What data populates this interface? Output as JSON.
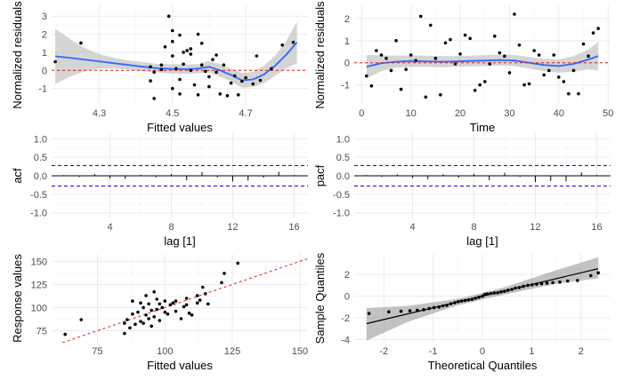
{
  "chart_data": [
    {
      "id": "p1",
      "type": "scatter",
      "xlabel": "Fitted values",
      "ylabel": "Normalized residuals",
      "xlim": [
        4.17,
        4.87
      ],
      "ylim": [
        -1.9,
        3.6
      ],
      "xticks": [
        4.3,
        4.5,
        4.7
      ],
      "yticks": [
        -1,
        0,
        1,
        2,
        3
      ],
      "refline_y": 0,
      "points": [
        [
          4.18,
          0.48
        ],
        [
          4.25,
          1.52
        ],
        [
          4.44,
          -0.58
        ],
        [
          4.44,
          0.2
        ],
        [
          4.45,
          -0.1
        ],
        [
          4.45,
          -1.55
        ],
        [
          4.47,
          0.3
        ],
        [
          4.47,
          0.05
        ],
        [
          4.48,
          1.3
        ],
        [
          4.49,
          3.0
        ],
        [
          4.5,
          2.2
        ],
        [
          4.5,
          1.6
        ],
        [
          4.5,
          0.8
        ],
        [
          4.5,
          -1.0
        ],
        [
          4.51,
          0.1
        ],
        [
          4.52,
          1.95
        ],
        [
          4.52,
          -0.5
        ],
        [
          4.52,
          -1.3
        ],
        [
          4.53,
          1.0
        ],
        [
          4.53,
          0.35
        ],
        [
          4.54,
          1.1
        ],
        [
          4.55,
          1.2
        ],
        [
          4.55,
          0.9
        ],
        [
          4.55,
          0.0
        ],
        [
          4.56,
          -0.8
        ],
        [
          4.57,
          2.0
        ],
        [
          4.57,
          -1.35
        ],
        [
          4.58,
          1.5
        ],
        [
          4.58,
          0.3
        ],
        [
          4.59,
          -0.05
        ],
        [
          4.6,
          -0.9
        ],
        [
          4.6,
          -0.35
        ],
        [
          4.61,
          0.6
        ],
        [
          4.62,
          0.85
        ],
        [
          4.62,
          -0.1
        ],
        [
          4.63,
          -1.3
        ],
        [
          4.64,
          0.3
        ],
        [
          4.65,
          -1.4
        ],
        [
          4.66,
          -0.7
        ],
        [
          4.67,
          -0.3
        ],
        [
          4.68,
          -1.35
        ],
        [
          4.69,
          -0.6
        ],
        [
          4.7,
          -0.4
        ],
        [
          4.72,
          -0.75
        ],
        [
          4.73,
          0.8
        ],
        [
          4.74,
          -0.55
        ],
        [
          4.77,
          0.1
        ],
        [
          4.8,
          1.4
        ],
        [
          4.83,
          1.55
        ]
      ],
      "smooth": {
        "x": [
          4.18,
          4.22,
          4.26,
          4.3,
          4.34,
          4.38,
          4.42,
          4.46,
          4.5,
          4.54,
          4.57,
          4.6,
          4.63,
          4.66,
          4.69,
          4.72,
          4.75,
          4.78,
          4.81,
          4.84
        ],
        "y": [
          0.78,
          0.7,
          0.6,
          0.5,
          0.4,
          0.3,
          0.2,
          0.12,
          0.08,
          0.07,
          0.1,
          0.2,
          0.0,
          -0.25,
          -0.55,
          -0.5,
          -0.22,
          0.25,
          0.85,
          1.55
        ],
        "lo": [
          -0.75,
          -0.35,
          -0.05,
          0.1,
          0.1,
          0.05,
          -0.05,
          -0.12,
          -0.18,
          -0.2,
          -0.15,
          -0.12,
          -0.35,
          -0.6,
          -0.95,
          -0.92,
          -0.7,
          -0.3,
          0.1,
          0.4
        ],
        "hi": [
          2.3,
          1.75,
          1.25,
          0.9,
          0.7,
          0.55,
          0.45,
          0.36,
          0.34,
          0.34,
          0.35,
          0.52,
          0.35,
          0.1,
          -0.15,
          -0.08,
          0.26,
          0.8,
          1.6,
          2.7
        ]
      }
    },
    {
      "id": "p2",
      "type": "scatter",
      "xlabel": "Time",
      "ylabel": "Normalized residuals",
      "xlim": [
        -1.5,
        50.5
      ],
      "ylim": [
        -1.9,
        2.6
      ],
      "xticks": [
        0,
        10,
        20,
        30,
        40,
        50
      ],
      "yticks": [
        -1,
        0,
        1,
        2
      ],
      "refline_y": 0,
      "points": [
        [
          1,
          -0.6
        ],
        [
          2,
          -1.05
        ],
        [
          3,
          0.55
        ],
        [
          4,
          0.35
        ],
        [
          5,
          0.2
        ],
        [
          6,
          -0.35
        ],
        [
          7,
          1.0
        ],
        [
          8,
          -1.2
        ],
        [
          9,
          -0.3
        ],
        [
          10,
          0.35
        ],
        [
          11,
          0.1
        ],
        [
          12,
          2.1
        ],
        [
          13,
          -1.55
        ],
        [
          14,
          1.7
        ],
        [
          15,
          0.2
        ],
        [
          16,
          -1.45
        ],
        [
          17,
          0.9
        ],
        [
          18,
          1.05
        ],
        [
          19,
          -0.05
        ],
        [
          20,
          0.4
        ],
        [
          21,
          1.25
        ],
        [
          22,
          1.1
        ],
        [
          23,
          -1.25
        ],
        [
          24,
          -1.0
        ],
        [
          25,
          -0.85
        ],
        [
          26,
          -0.05
        ],
        [
          27,
          1.2
        ],
        [
          28,
          0.45
        ],
        [
          29,
          0.3
        ],
        [
          30,
          -0.45
        ],
        [
          31,
          2.2
        ],
        [
          32,
          0.8
        ],
        [
          33,
          -1.0
        ],
        [
          34,
          -0.95
        ],
        [
          35,
          0.55
        ],
        [
          36,
          0.35
        ],
        [
          37,
          -0.55
        ],
        [
          38,
          -0.35
        ],
        [
          39,
          0.35
        ],
        [
          40,
          -0.65
        ],
        [
          41,
          -0.85
        ],
        [
          42,
          -1.4
        ],
        [
          43,
          -0.35
        ],
        [
          44,
          -1.4
        ],
        [
          45,
          0.85
        ],
        [
          46,
          0.3
        ],
        [
          47,
          1.35
        ],
        [
          48,
          1.55
        ]
      ],
      "smooth": {
        "x": [
          1,
          4,
          7,
          10,
          13,
          16,
          19,
          22,
          25,
          28,
          31,
          34,
          37,
          40,
          43,
          46,
          48
        ],
        "y": [
          -0.18,
          -0.02,
          0.05,
          0.08,
          0.07,
          0.05,
          0.06,
          0.08,
          0.1,
          0.12,
          0.1,
          0.0,
          -0.1,
          -0.15,
          -0.05,
          0.15,
          0.3
        ],
        "lo": [
          -0.7,
          -0.38,
          -0.22,
          -0.18,
          -0.19,
          -0.2,
          -0.18,
          -0.16,
          -0.15,
          -0.13,
          -0.15,
          -0.26,
          -0.38,
          -0.45,
          -0.4,
          -0.3,
          -0.35
        ],
        "hi": [
          0.35,
          0.34,
          0.32,
          0.33,
          0.32,
          0.3,
          0.3,
          0.32,
          0.35,
          0.37,
          0.35,
          0.26,
          0.18,
          0.15,
          0.3,
          0.6,
          0.95
        ]
      }
    },
    {
      "id": "p3",
      "type": "bar",
      "xlabel": "lag [1]",
      "ylabel": "acf",
      "xlim": [
        0.2,
        16.9
      ],
      "ylim": [
        -1.15,
        1.15
      ],
      "xticks": [
        4,
        8,
        12,
        16
      ],
      "yticks": [
        -1.0,
        -0.5,
        0.0,
        0.5,
        1.0
      ],
      "conf": 0.28,
      "lags": [
        1,
        2,
        3,
        4,
        5,
        6,
        7,
        8,
        9,
        10,
        11,
        12,
        13,
        14,
        15,
        16
      ],
      "values": [
        0.02,
        -0.03,
        0.05,
        -0.07,
        -0.08,
        0.03,
        -0.04,
        0.05,
        -0.12,
        0.1,
        -0.04,
        -0.15,
        -0.13,
        -0.05,
        0.11,
        0.02
      ]
    },
    {
      "id": "p4",
      "type": "bar",
      "xlabel": "lag [1]",
      "ylabel": "pacf",
      "xlim": [
        0.2,
        16.9
      ],
      "ylim": [
        -1.15,
        1.15
      ],
      "xticks": [
        4,
        8,
        12,
        16
      ],
      "yticks": [
        -1.0,
        -0.5,
        0.0,
        0.5,
        1.0
      ],
      "conf": 0.28,
      "lags": [
        1,
        2,
        3,
        4,
        5,
        6,
        7,
        8,
        9,
        10,
        11,
        12,
        13,
        14,
        15,
        16
      ],
      "values": [
        0.02,
        -0.03,
        0.04,
        -0.06,
        -0.09,
        0.04,
        -0.05,
        0.05,
        -0.12,
        0.08,
        -0.03,
        -0.17,
        -0.14,
        -0.15,
        0.09,
        0.02
      ]
    },
    {
      "id": "p5",
      "type": "scatter",
      "xlabel": "Fitted values",
      "ylabel": "Response values",
      "xlim": [
        58,
        153
      ],
      "ylim": [
        62,
        158
      ],
      "xticks": [
        75,
        100,
        125,
        150
      ],
      "yticks": [
        75,
        100,
        125,
        150
      ],
      "identity_line": true,
      "points": [
        [
          63,
          71
        ],
        [
          69,
          87
        ],
        [
          85,
          72
        ],
        [
          85,
          83
        ],
        [
          86,
          87
        ],
        [
          87,
          78
        ],
        [
          88,
          93
        ],
        [
          88,
          107
        ],
        [
          89,
          82
        ],
        [
          90,
          95
        ],
        [
          91,
          85
        ],
        [
          91,
          105
        ],
        [
          92,
          83
        ],
        [
          92,
          100
        ],
        [
          93,
          92
        ],
        [
          93,
          113
        ],
        [
          94,
          88
        ],
        [
          94,
          104
        ],
        [
          95,
          80
        ],
        [
          95,
          97
        ],
        [
          96,
          90
        ],
        [
          96,
          117
        ],
        [
          97,
          98
        ],
        [
          97,
          109
        ],
        [
          98,
          86
        ],
        [
          98,
          104
        ],
        [
          99,
          100
        ],
        [
          100,
          107
        ],
        [
          100,
          95
        ],
        [
          101,
          93
        ],
        [
          102,
          103
        ],
        [
          103,
          105
        ],
        [
          104,
          96
        ],
        [
          104,
          107
        ],
        [
          106,
          88
        ],
        [
          107,
          101
        ],
        [
          108,
          110
        ],
        [
          108,
          103
        ],
        [
          109,
          94
        ],
        [
          110,
          92
        ],
        [
          112,
          105
        ],
        [
          112,
          113
        ],
        [
          113,
          108
        ],
        [
          114,
          122
        ],
        [
          115,
          115
        ],
        [
          116,
          104
        ],
        [
          121,
          127
        ],
        [
          122,
          137
        ],
        [
          127,
          148
        ]
      ]
    },
    {
      "id": "p6",
      "type": "scatter",
      "xlabel": "Theoretical Quantiles",
      "ylabel": "Sample Quantiles",
      "xlim": [
        -2.6,
        2.6
      ],
      "ylim": [
        -4.3,
        3.9
      ],
      "xticks": [
        -2,
        -1,
        0,
        1,
        2
      ],
      "yticks": [
        -4,
        -2,
        0,
        2
      ],
      "qq_line": {
        "intercept": 0.0,
        "slope": 1.08
      },
      "qq_band": {
        "x": [
          -2.35,
          -1.5,
          -0.5,
          0,
          0.5,
          1.5,
          2.35
        ],
        "lo": [
          -4.1,
          -2.35,
          -0.85,
          -0.3,
          0.2,
          1.15,
          1.65
        ],
        "hi": [
          -1.1,
          -0.9,
          -0.25,
          0.3,
          0.9,
          2.4,
          3.6
        ]
      },
      "points": [
        [
          -2.3,
          -1.6
        ],
        [
          -1.9,
          -1.45
        ],
        [
          -1.65,
          -1.4
        ],
        [
          -1.47,
          -1.35
        ],
        [
          -1.32,
          -1.3
        ],
        [
          -1.19,
          -1.25
        ],
        [
          -1.08,
          -1.15
        ],
        [
          -0.98,
          -1.05
        ],
        [
          -0.88,
          -1.0
        ],
        [
          -0.8,
          -0.9
        ],
        [
          -0.72,
          -0.85
        ],
        [
          -0.64,
          -0.7
        ],
        [
          -0.56,
          -0.6
        ],
        [
          -0.49,
          -0.5
        ],
        [
          -0.42,
          -0.45
        ],
        [
          -0.35,
          -0.4
        ],
        [
          -0.28,
          -0.35
        ],
        [
          -0.21,
          -0.3
        ],
        [
          -0.14,
          -0.2
        ],
        [
          -0.07,
          -0.1
        ],
        [
          0.0,
          0.0
        ],
        [
          0.05,
          0.15
        ],
        [
          0.1,
          0.2
        ],
        [
          0.17,
          0.25
        ],
        [
          0.24,
          0.3
        ],
        [
          0.31,
          0.32
        ],
        [
          0.38,
          0.4
        ],
        [
          0.45,
          0.45
        ],
        [
          0.52,
          0.55
        ],
        [
          0.6,
          0.62
        ],
        [
          0.67,
          0.75
        ],
        [
          0.75,
          0.8
        ],
        [
          0.83,
          0.9
        ],
        [
          0.92,
          1.0
        ],
        [
          1.01,
          1.05
        ],
        [
          1.1,
          1.1
        ],
        [
          1.2,
          1.15
        ],
        [
          1.31,
          1.2
        ],
        [
          1.43,
          1.25
        ],
        [
          1.57,
          1.3
        ],
        [
          1.73,
          1.4
        ],
        [
          1.93,
          1.45
        ],
        [
          2.2,
          1.9
        ],
        [
          2.35,
          2.15
        ]
      ]
    }
  ]
}
